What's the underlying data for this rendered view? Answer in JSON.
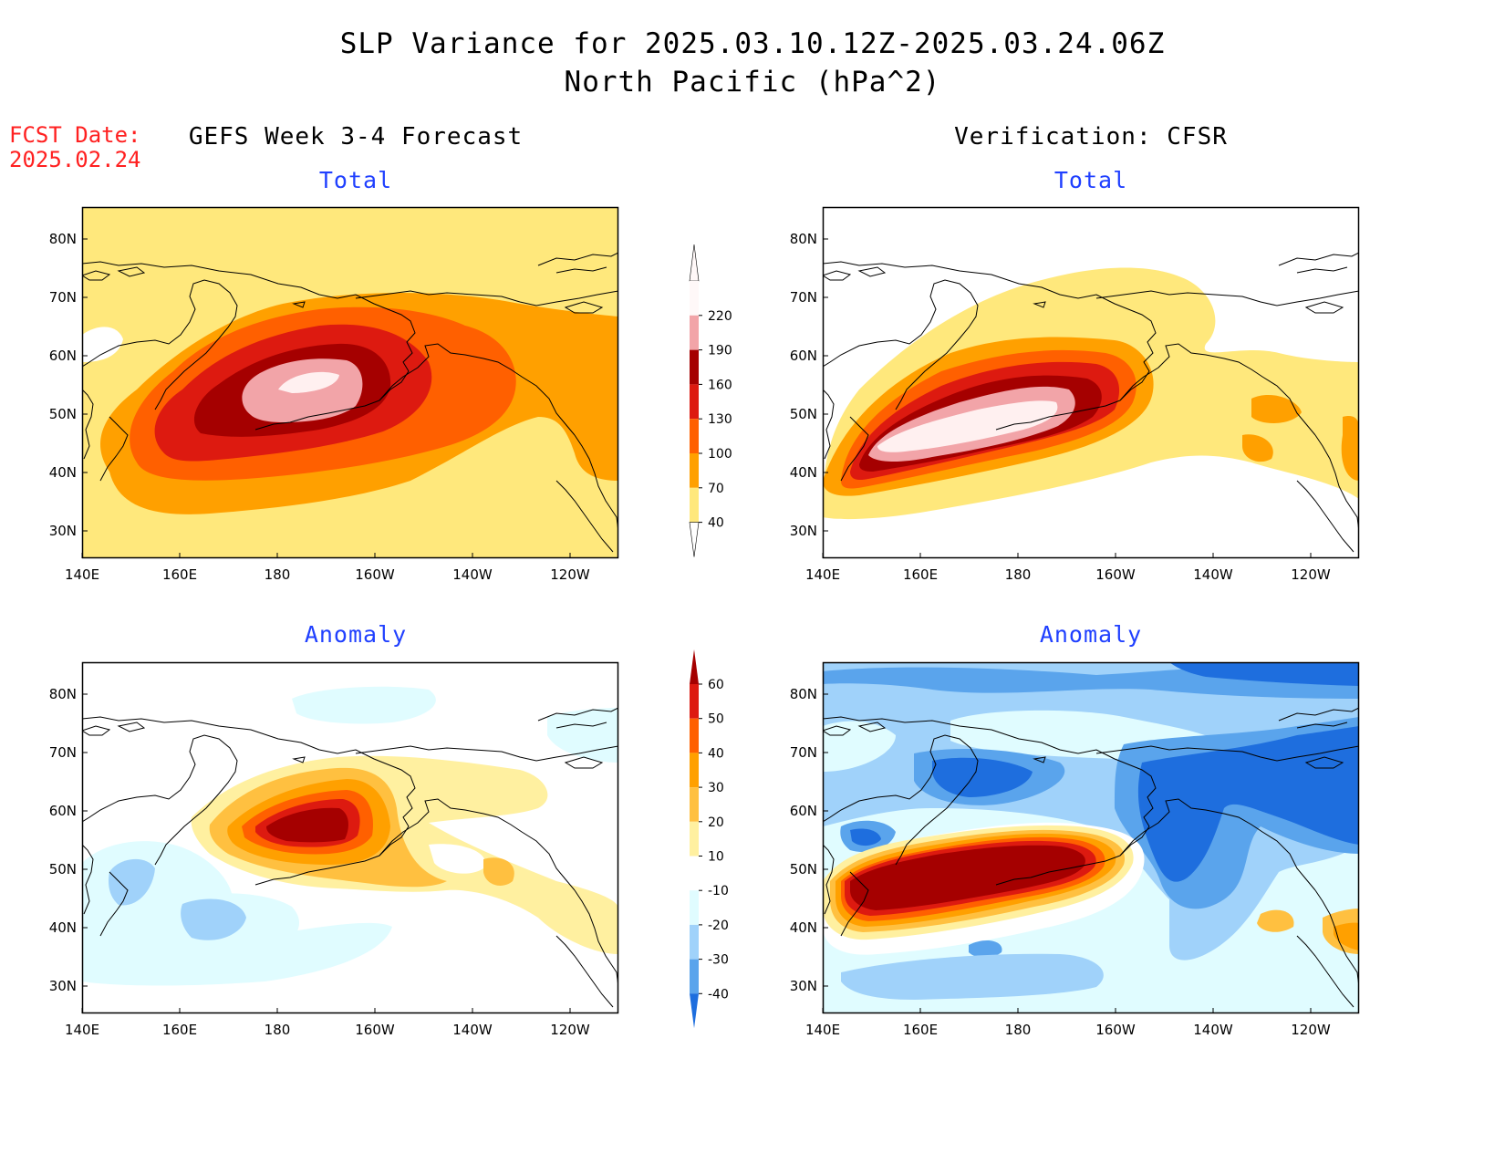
{
  "header": {
    "title_line1": "SLP Variance for 2025.03.10.12Z-2025.03.24.06Z",
    "title_line2": "North Pacific (hPa^2)",
    "fcst_label": "FCST Date:",
    "fcst_date": "2025.02.24"
  },
  "columns": {
    "left_title": "GEFS Week 3-4 Forecast",
    "right_title": "Verification: CFSR"
  },
  "panels": {
    "forecast_total": {
      "title": "Total"
    },
    "verification_total": {
      "title": "Total"
    },
    "forecast_anomaly": {
      "title": "Anomaly"
    },
    "verification_anomaly": {
      "title": "Anomaly"
    }
  },
  "axes": {
    "lon_ticks": [
      "140E",
      "160E",
      "180",
      "160W",
      "140W",
      "120W"
    ],
    "lat_ticks": [
      "30N",
      "40N",
      "50N",
      "60N",
      "70N",
      "80N"
    ]
  },
  "colorbars": {
    "total": {
      "labels": [
        "40",
        "70",
        "100",
        "130",
        "160",
        "190",
        "220"
      ],
      "colors": [
        "#fff8f8",
        "#f2a4a8",
        "#a50000",
        "#dd1a10",
        "#ff6000",
        "#ffa000",
        "#ffe87c"
      ]
    },
    "anomaly": {
      "labels": [
        "60",
        "50",
        "40",
        "30",
        "20",
        "10",
        "-10",
        "-20",
        "-30",
        "-40"
      ],
      "colors": [
        "#a50000",
        "#dd1a10",
        "#ff6000",
        "#ffa000",
        "#ffc040",
        "#fff0a0",
        "#ffffff",
        "#e0fcff",
        "#a0d2fa",
        "#5aa4ec",
        "#1e6ede"
      ]
    }
  },
  "colors": {
    "title_accent": "#2040ff",
    "fcst_red": "#ff2020"
  }
}
